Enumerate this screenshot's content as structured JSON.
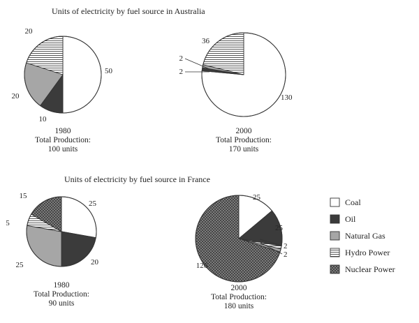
{
  "colors": {
    "Coal": "#ffffff",
    "Oil": "#3b3b3b",
    "Natural Gas": "#a6a6a6",
    "Hydro Power": "hatch-horizontal",
    "Nuclear Power": "crosshatch-dark"
  },
  "legend": [
    "Coal",
    "Oil",
    "Natural Gas",
    "Hydro Power",
    "Nuclear Power"
  ],
  "chart_data": [
    {
      "type": "pie",
      "title": "Units of electricity by fuel source in Australia",
      "caption": [
        "1980",
        "Total Production:",
        "100 units"
      ],
      "slices": [
        {
          "name": "Coal",
          "value": 50,
          "label": "50"
        },
        {
          "name": "Oil",
          "value": 10,
          "label": "10"
        },
        {
          "name": "Natural Gas",
          "value": 20,
          "label": "20"
        },
        {
          "name": "Hydro Power",
          "value": 20,
          "label": "20"
        }
      ]
    },
    {
      "type": "pie",
      "title": "",
      "caption": [
        "2000",
        "Total Production:",
        "170 units"
      ],
      "slices": [
        {
          "name": "Coal",
          "value": 130,
          "label": "130"
        },
        {
          "name": "Oil",
          "value": 2,
          "label": "2"
        },
        {
          "name": "Natural Gas",
          "value": 2,
          "label": "2"
        },
        {
          "name": "Hydro Power",
          "value": 36,
          "label": "36"
        }
      ]
    },
    {
      "type": "pie",
      "title": "Units of electricity by fuel source in France",
      "caption": [
        "1980",
        "Total Production:",
        "90 units"
      ],
      "slices": [
        {
          "name": "Coal",
          "value": 25,
          "label": "25"
        },
        {
          "name": "Oil",
          "value": 20,
          "label": "20"
        },
        {
          "name": "Natural Gas",
          "value": 25,
          "label": "25"
        },
        {
          "name": "Hydro Power",
          "value": 5,
          "label": "5"
        },
        {
          "name": "Nuclear Power",
          "value": 15,
          "label": "15"
        }
      ]
    },
    {
      "type": "pie",
      "title": "",
      "caption": [
        "2000",
        "Total Production:",
        "180 units"
      ],
      "slices": [
        {
          "name": "Coal",
          "value": 25,
          "label": "25"
        },
        {
          "name": "Oil",
          "value": 25,
          "label": "25"
        },
        {
          "name": "Natural Gas",
          "value": 2,
          "label": "2"
        },
        {
          "name": "Hydro Power",
          "value": 2,
          "label": "2"
        },
        {
          "name": "Nuclear Power",
          "value": 126,
          "label": "126"
        }
      ]
    }
  ]
}
